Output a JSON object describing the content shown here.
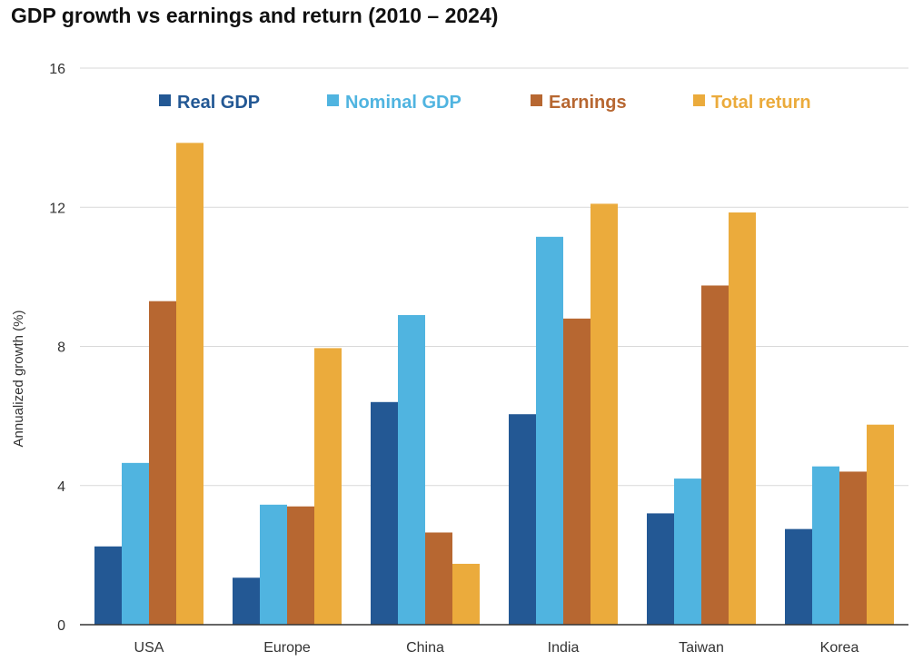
{
  "chart_data": {
    "type": "bar",
    "title": "GDP growth vs earnings and return (2010 – 2024)",
    "xlabel": "",
    "ylabel": "Annualized growth (%)",
    "ylim": [
      0,
      16
    ],
    "yticks": [
      0,
      4,
      8,
      12,
      16
    ],
    "grid": true,
    "legend_position": "top",
    "categories": [
      "USA",
      "Europe",
      "China",
      "India",
      "Taiwan",
      "Korea"
    ],
    "series": [
      {
        "name": "Real GDP",
        "color": "#235894",
        "values": [
          2.25,
          1.35,
          6.4,
          6.05,
          3.2,
          2.75
        ]
      },
      {
        "name": "Nominal GDP",
        "color": "#50b4e0",
        "values": [
          4.65,
          3.45,
          8.9,
          11.15,
          4.2,
          4.55
        ]
      },
      {
        "name": "Earnings",
        "color": "#b76731",
        "values": [
          9.3,
          3.4,
          2.65,
          8.8,
          9.75,
          4.4
        ]
      },
      {
        "name": "Total return",
        "color": "#ebab3c",
        "values": [
          13.85,
          7.95,
          1.75,
          12.1,
          11.85,
          5.75
        ]
      }
    ]
  }
}
